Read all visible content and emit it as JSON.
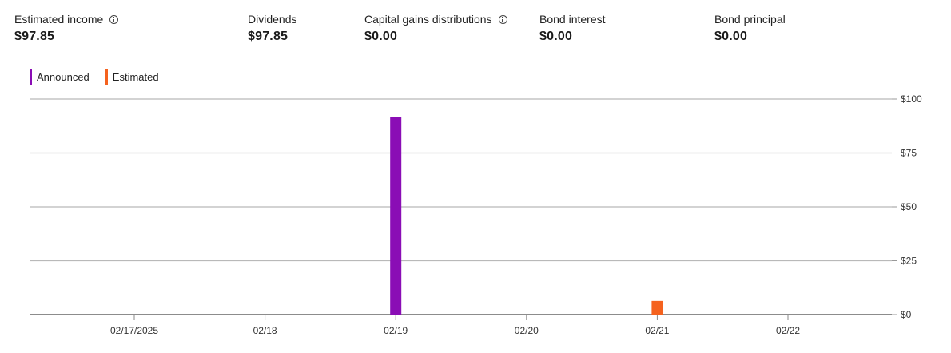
{
  "summary": [
    {
      "label": "Estimated income",
      "value": "$97.85",
      "info_icon": true
    },
    {
      "label": "Dividends",
      "value": "$97.85",
      "info_icon": false
    },
    {
      "label": "Capital gains distributions",
      "value": "$0.00",
      "info_icon": true
    },
    {
      "label": "Bond interest",
      "value": "$0.00",
      "info_icon": false
    },
    {
      "label": "Bond principal",
      "value": "$0.00",
      "info_icon": false
    }
  ],
  "legend": [
    {
      "label": "Announced",
      "color": "#8a0db5"
    },
    {
      "label": "Estimated",
      "color": "#f5621e"
    }
  ],
  "chart_data": {
    "type": "bar",
    "categories": [
      "02/17/2025",
      "02/18",
      "02/19",
      "02/20",
      "02/21",
      "02/22"
    ],
    "series": [
      {
        "name": "Announced",
        "color": "#8a0db5",
        "values": [
          0,
          0,
          91.5,
          0,
          0,
          0
        ]
      },
      {
        "name": "Estimated",
        "color": "#f5621e",
        "values": [
          0,
          0,
          0,
          0,
          6.35,
          0
        ]
      }
    ],
    "y_ticks": [
      0,
      25,
      50,
      75,
      100
    ],
    "y_tick_labels": [
      "$0",
      "$25",
      "$50",
      "$75",
      "$100"
    ],
    "ylim": [
      0,
      100
    ],
    "grid": true,
    "legend_position": "top-left"
  }
}
